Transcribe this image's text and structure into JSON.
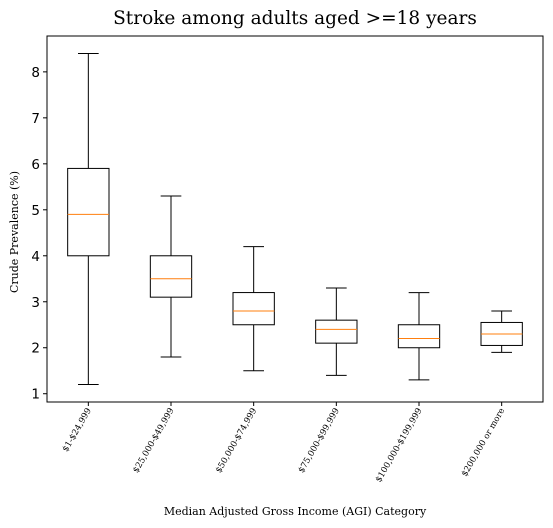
{
  "chart_data": {
    "type": "boxplot",
    "title": "Stroke among adults aged >=18 years",
    "xlabel": "Median Adjusted Gross Income (AGI) Category",
    "ylabel": "Crude Prevalence (%)",
    "categories": [
      "$1-$24,999",
      "$25,000-$49,999",
      "$50,000-$74,999",
      "$75,000-$99,999",
      "$100,000-$199,999",
      "$200,000 or more"
    ],
    "boxes": [
      {
        "whisker_low": 1.2,
        "q1": 4.0,
        "median": 4.9,
        "q3": 5.9,
        "whisker_high": 8.4
      },
      {
        "whisker_low": 1.8,
        "q1": 3.1,
        "median": 3.5,
        "q3": 4.0,
        "whisker_high": 5.3
      },
      {
        "whisker_low": 1.5,
        "q1": 2.5,
        "median": 2.8,
        "q3": 3.2,
        "whisker_high": 4.2
      },
      {
        "whisker_low": 1.4,
        "q1": 2.1,
        "median": 2.4,
        "q3": 2.6,
        "whisker_high": 3.3
      },
      {
        "whisker_low": 1.3,
        "q1": 2.0,
        "median": 2.2,
        "q3": 2.5,
        "whisker_high": 3.2
      },
      {
        "whisker_low": 1.9,
        "q1": 2.05,
        "median": 2.3,
        "q3": 2.55,
        "whisker_high": 2.8
      }
    ],
    "yticks": [
      "1",
      "2",
      "3",
      "4",
      "5",
      "6",
      "7",
      "8"
    ],
    "ylim": [
      0.82,
      8.78
    ],
    "grid": false,
    "colors": {
      "box": "#000000",
      "median": "#ff7f0e"
    }
  }
}
